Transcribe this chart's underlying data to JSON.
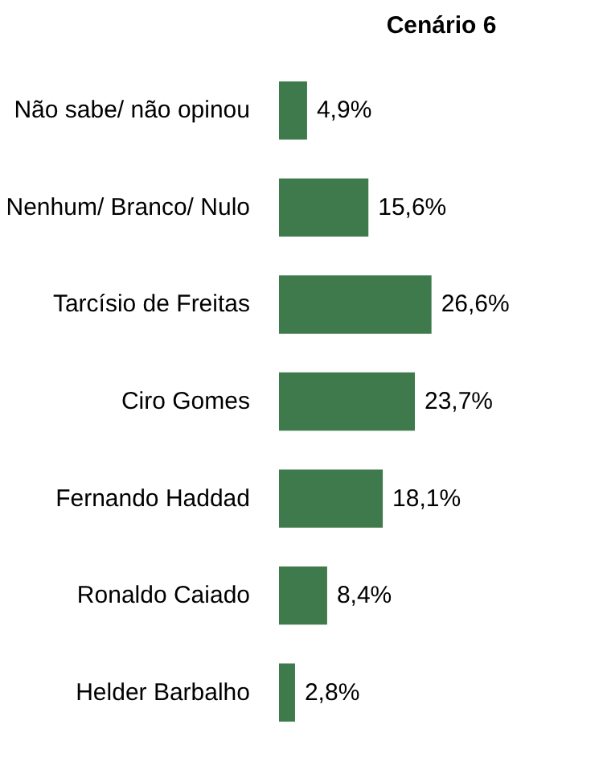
{
  "chart_data": {
    "type": "bar",
    "orientation": "horizontal",
    "title": "Cenário 6",
    "categories": [
      "Não sabe/ não opinou",
      "Nenhum/ Branco/ Nulo",
      "Tarcísio de Freitas",
      "Ciro Gomes",
      "Fernando Haddad",
      "Ronaldo Caiado",
      "Helder Barbalho"
    ],
    "values": [
      4.9,
      15.6,
      26.6,
      23.7,
      18.1,
      8.4,
      2.8
    ],
    "value_labels": [
      "4,9%",
      "15,6%",
      "26,6%",
      "23,7%",
      "18,1%",
      "8,4%",
      "2,8%"
    ],
    "color": "#3f7a4c",
    "tick_labels": false
  }
}
